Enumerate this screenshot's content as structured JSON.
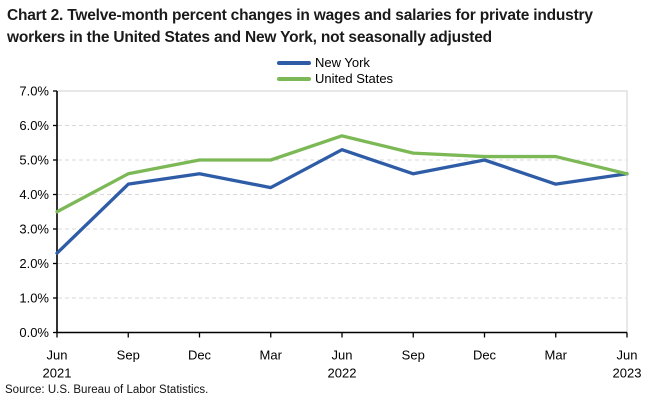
{
  "title": "Chart 2. Twelve-month percent changes in wages and salaries for private industry workers in the United States and New York, not seasonally adjusted",
  "source": "Source: U.S. Bureau of Labor Statistics.",
  "colors": {
    "new_york": "#2E5CA6",
    "united_states": "#7CB956",
    "gridline": "#D9D9D9",
    "frame": "#D9D9D9",
    "axis": "#000000",
    "text": "#000000"
  },
  "chart_data": {
    "type": "line",
    "title": "Chart 2. Twelve-month percent changes in wages and salaries for private industry workers in the United States and New York, not seasonally adjusted",
    "categories": [
      "Jun",
      "Sep",
      "Dec",
      "Mar",
      "Jun",
      "Sep",
      "Dec",
      "Mar",
      "Jun"
    ],
    "year_labels": [
      {
        "index": 0,
        "text": "2021"
      },
      {
        "index": 4,
        "text": "2022"
      },
      {
        "index": 8,
        "text": "2023"
      }
    ],
    "series": [
      {
        "name": "New York",
        "color": "#2E5CA6",
        "values": [
          2.3,
          4.3,
          4.6,
          4.2,
          5.3,
          4.6,
          5.0,
          4.3,
          4.6
        ]
      },
      {
        "name": "United States",
        "color": "#7CB956",
        "values": [
          3.5,
          4.6,
          5.0,
          5.0,
          5.7,
          5.2,
          5.1,
          5.1,
          4.6
        ]
      }
    ],
    "ylim": [
      0,
      7
    ],
    "ytick_step": 1,
    "ytick_labels": [
      "0.0%",
      "1.0%",
      "2.0%",
      "3.0%",
      "4.0%",
      "5.0%",
      "6.0%",
      "7.0%"
    ],
    "xlabel": "",
    "ylabel": "",
    "grid": "horizontal-dashed",
    "legend_position": "top-center",
    "units": "percent"
  }
}
